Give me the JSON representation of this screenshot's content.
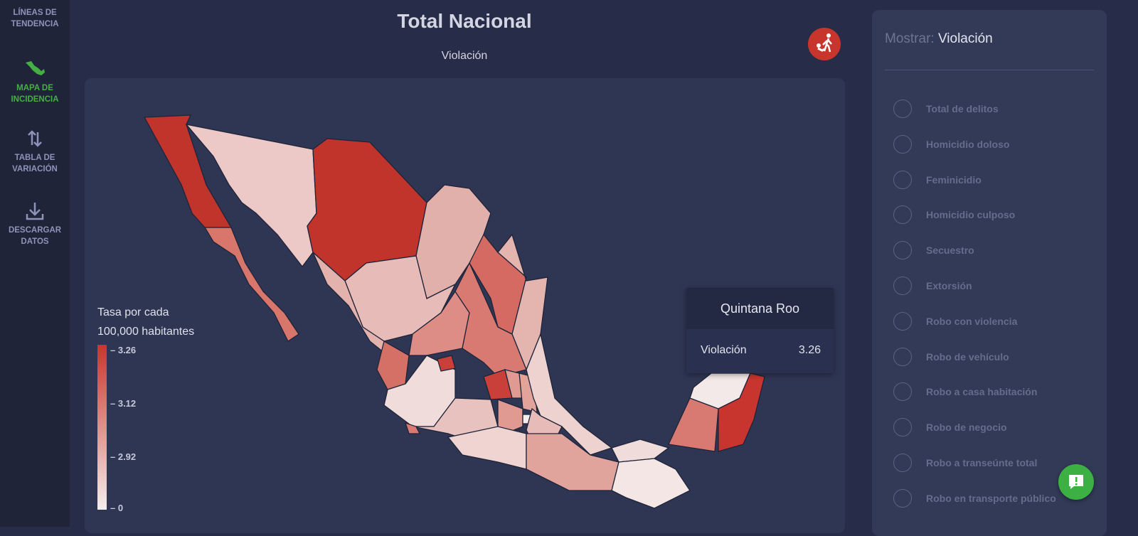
{
  "sidebar": {
    "items": [
      {
        "label1": "LÍNEAS DE",
        "label2": "TENDENCIA",
        "icon": "trend-icon"
      },
      {
        "label1": "MAPA DE",
        "label2": "INCIDENCIA",
        "icon": "mexico-map-icon",
        "active": true
      },
      {
        "label1": "TABLA DE",
        "label2": "VARIACIÓN",
        "icon": "swap-arrows-icon"
      },
      {
        "label1": "DESCARGAR",
        "label2": "DATOS",
        "icon": "download-icon"
      }
    ],
    "active_color": "#44b044"
  },
  "header": {
    "title": "Total Nacional",
    "subtitle": "Violación",
    "crime_icon": "assault-icon"
  },
  "legend": {
    "title1": "Tasa por cada",
    "title2": "100,000 habitantes",
    "ticks": [
      "3.26",
      "3.12",
      "2.92",
      "0"
    ],
    "color_high": "#c8352c",
    "color_low": "#f4eeee"
  },
  "tooltip": {
    "state": "Quintana Roo",
    "metric": "Violación",
    "value": "3.26"
  },
  "panel": {
    "show_label": "Mostrar:",
    "show_value": "Violación",
    "options": [
      "Total de delitos",
      "Homicidio doloso",
      "Feminicidio",
      "Homicidio culposo",
      "Secuestro",
      "Extorsión",
      "Robo con violencia",
      "Robo de vehículo",
      "Robo a casa habitación",
      "Robo de negocio",
      "Robo a transeúnte total",
      "Robo en transporte público"
    ]
  },
  "chat": {
    "icon": "chat-icon",
    "color": "#3cb043"
  }
}
